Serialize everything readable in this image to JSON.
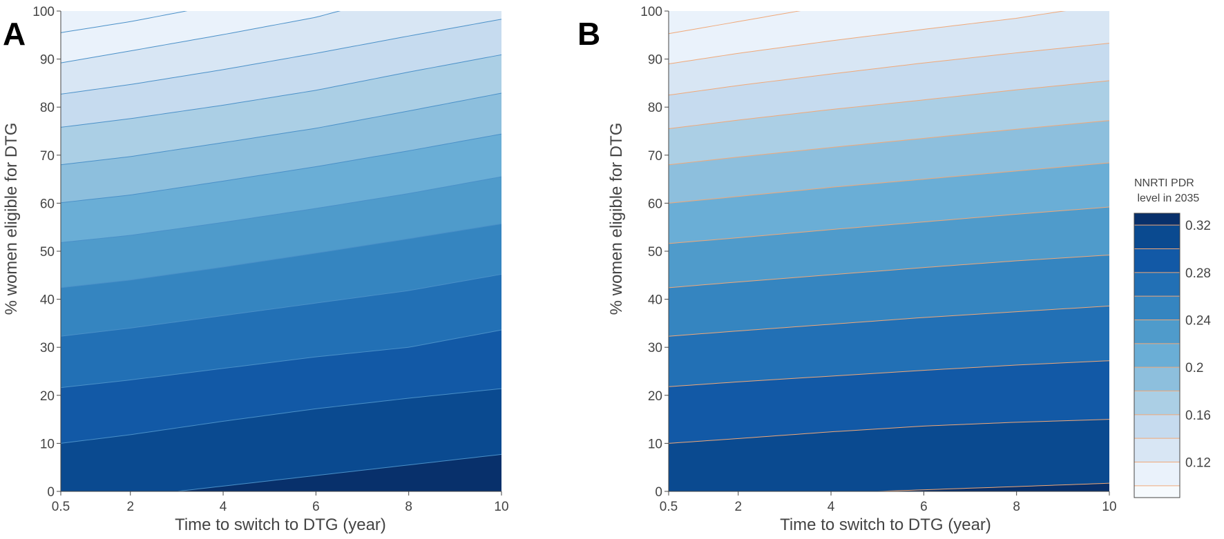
{
  "chart_data": [
    {
      "type": "contour",
      "panel_label": "A",
      "xlabel": "Time to switch to DTG (year)",
      "ylabel": "% women eligible for DTG",
      "x_ticks": [
        "0.5",
        "2",
        "4",
        "6",
        "8",
        "10"
      ],
      "y_ticks": [
        "0",
        "10",
        "20",
        "30",
        "40",
        "50",
        "60",
        "70",
        "80",
        "90",
        "100"
      ],
      "xlim": [
        0.5,
        10
      ],
      "ylim": [
        0,
        100
      ],
      "line_color": "#4a90c8",
      "contour_lines": [
        {
          "level": 0.32,
          "points": [
            [
              0.5,
              -11
            ],
            [
              3,
              0
            ],
            [
              10,
              7.7
            ]
          ]
        },
        {
          "level": 0.3,
          "points": [
            [
              0.5,
              10
            ],
            [
              2,
              11.8
            ],
            [
              4,
              14.6
            ],
            [
              6,
              17.2
            ],
            [
              8,
              19.4
            ],
            [
              10,
              21.4
            ]
          ]
        },
        {
          "level": 0.28,
          "points": [
            [
              0.5,
              21.6
            ],
            [
              2,
              23.2
            ],
            [
              4,
              25.6
            ],
            [
              6,
              28
            ],
            [
              8,
              30
            ],
            [
              10,
              33.6
            ]
          ]
        },
        {
          "level": 0.26,
          "points": [
            [
              0.5,
              32.3
            ],
            [
              2,
              34
            ],
            [
              4,
              36.6
            ],
            [
              6,
              39.2
            ],
            [
              8,
              41.8
            ],
            [
              10,
              45.2
            ]
          ]
        },
        {
          "level": 0.24,
          "points": [
            [
              0.5,
              42.4
            ],
            [
              2,
              44
            ],
            [
              4,
              46.7
            ],
            [
              6,
              49.6
            ],
            [
              8,
              52.6
            ],
            [
              10,
              55.7
            ]
          ]
        },
        {
          "level": 0.22,
          "points": [
            [
              0.5,
              51.8
            ],
            [
              2,
              53.3
            ],
            [
              4,
              56
            ],
            [
              6,
              58.9
            ],
            [
              8,
              62
            ],
            [
              10,
              65.5
            ]
          ]
        },
        {
          "level": 0.2,
          "points": [
            [
              0.5,
              60.1
            ],
            [
              2,
              61.7
            ],
            [
              4,
              64.6
            ],
            [
              6,
              67.6
            ],
            [
              8,
              70.9
            ],
            [
              10,
              74.4
            ]
          ]
        },
        {
          "level": 0.18,
          "points": [
            [
              0.5,
              68
            ],
            [
              2,
              69.7
            ],
            [
              4,
              72.6
            ],
            [
              6,
              75.6
            ],
            [
              8,
              79.2
            ],
            [
              10,
              82.9
            ]
          ]
        },
        {
          "level": 0.16,
          "points": [
            [
              0.5,
              75.8
            ],
            [
              2,
              77.6
            ],
            [
              4,
              80.4
            ],
            [
              6,
              83.5
            ],
            [
              8,
              87.3
            ],
            [
              10,
              90.9
            ]
          ]
        },
        {
          "level": 0.14,
          "points": [
            [
              0.5,
              82.7
            ],
            [
              2,
              84.7
            ],
            [
              4,
              87.8
            ],
            [
              6,
              91.2
            ],
            [
              8,
              94.8
            ],
            [
              10,
              98.3
            ]
          ]
        },
        {
          "level": 0.12,
          "points": [
            [
              0.5,
              89.2
            ],
            [
              2,
              91.7
            ],
            [
              4,
              95.1
            ],
            [
              6,
              98.7
            ],
            [
              6.5,
              100
            ],
            [
              10,
              108
            ]
          ]
        },
        {
          "level": 0.1,
          "points": [
            [
              0.5,
              95.5
            ],
            [
              2,
              97.8
            ],
            [
              3.2,
              100
            ],
            [
              6,
              106
            ]
          ]
        }
      ]
    },
    {
      "type": "contour",
      "panel_label": "B",
      "xlabel": "Time to switch to DTG (year)",
      "ylabel": "% women eligible for DTG",
      "x_ticks": [
        "0.5",
        "2",
        "4",
        "6",
        "8",
        "10"
      ],
      "y_ticks": [
        "0",
        "10",
        "20",
        "30",
        "40",
        "50",
        "60",
        "70",
        "80",
        "90",
        "100"
      ],
      "xlim": [
        0.5,
        10
      ],
      "ylim": [
        0,
        100
      ],
      "line_color": "#f0a878",
      "contour_lines": [
        {
          "level": 0.32,
          "points": [
            [
              0.5,
              -6
            ],
            [
              5,
              0
            ],
            [
              8,
              1
            ],
            [
              10,
              1.7
            ]
          ]
        },
        {
          "level": 0.3,
          "points": [
            [
              0.5,
              10
            ],
            [
              2,
              11
            ],
            [
              4,
              12.4
            ],
            [
              6,
              13.6
            ],
            [
              8,
              14.4
            ],
            [
              10,
              15
            ]
          ]
        },
        {
          "level": 0.28,
          "points": [
            [
              0.5,
              21.8
            ],
            [
              2,
              22.8
            ],
            [
              4,
              24
            ],
            [
              6,
              25.2
            ],
            [
              8,
              26.3
            ],
            [
              10,
              27.2
            ]
          ]
        },
        {
          "level": 0.26,
          "points": [
            [
              0.5,
              32.3
            ],
            [
              2,
              33.4
            ],
            [
              4,
              34.8
            ],
            [
              6,
              36.2
            ],
            [
              8,
              37.4
            ],
            [
              10,
              38.6
            ]
          ]
        },
        {
          "level": 0.24,
          "points": [
            [
              0.5,
              42.4
            ],
            [
              2,
              43.6
            ],
            [
              4,
              45.1
            ],
            [
              6,
              46.6
            ],
            [
              8,
              48
            ],
            [
              10,
              49.2
            ]
          ]
        },
        {
          "level": 0.22,
          "points": [
            [
              0.5,
              51.6
            ],
            [
              2,
              52.8
            ],
            [
              4,
              54.5
            ],
            [
              6,
              56.1
            ],
            [
              8,
              57.7
            ],
            [
              10,
              59.2
            ]
          ]
        },
        {
          "level": 0.2,
          "points": [
            [
              0.5,
              60
            ],
            [
              2,
              61.4
            ],
            [
              4,
              63.3
            ],
            [
              6,
              65
            ],
            [
              8,
              66.7
            ],
            [
              10,
              68.4
            ]
          ]
        },
        {
          "level": 0.18,
          "points": [
            [
              0.5,
              68
            ],
            [
              2,
              69.6
            ],
            [
              4,
              71.6
            ],
            [
              6,
              73.5
            ],
            [
              8,
              75.4
            ],
            [
              10,
              77.2
            ]
          ]
        },
        {
          "level": 0.16,
          "points": [
            [
              0.5,
              75.5
            ],
            [
              2,
              77.3
            ],
            [
              4,
              79.5
            ],
            [
              6,
              81.5
            ],
            [
              8,
              83.6
            ],
            [
              10,
              85.5
            ]
          ]
        },
        {
          "level": 0.14,
          "points": [
            [
              0.5,
              82.5
            ],
            [
              2,
              84.5
            ],
            [
              4,
              86.9
            ],
            [
              6,
              89.2
            ],
            [
              8,
              91.3
            ],
            [
              10,
              93.3
            ]
          ]
        },
        {
          "level": 0.12,
          "points": [
            [
              0.5,
              89
            ],
            [
              2,
              91.2
            ],
            [
              4,
              93.8
            ],
            [
              6,
              96.2
            ],
            [
              8,
              98.5
            ],
            [
              9,
              100
            ],
            [
              10,
              101
            ]
          ]
        },
        {
          "level": 0.1,
          "points": [
            [
              0.5,
              95.3
            ],
            [
              2,
              97.8
            ],
            [
              3.3,
              100
            ],
            [
              6,
              104
            ]
          ]
        }
      ]
    }
  ],
  "colorbar": {
    "title_line1": "NNRTI PDR",
    "title_line2": " level in 2035",
    "tick_labels": [
      "0.32",
      "0.28",
      "0.24",
      "0.2",
      "0.16",
      "0.12"
    ],
    "tick_values": [
      0.32,
      0.28,
      0.24,
      0.2,
      0.16,
      0.12
    ],
    "range": [
      0.09,
      0.33
    ],
    "levels": [
      0.1,
      0.12,
      0.14,
      0.16,
      0.18,
      0.2,
      0.22,
      0.24,
      0.26,
      0.28,
      0.3,
      0.32
    ],
    "colors": [
      "#eaf2fb",
      "#d8e6f4",
      "#c6dbef",
      "#abcfe5",
      "#8dbfdd",
      "#6aaed6",
      "#4f9bcb",
      "#3585c0",
      "#2270b5",
      "#1259a6",
      "#0a4a90",
      "#08306b"
    ],
    "line_color": "#f0a878"
  }
}
